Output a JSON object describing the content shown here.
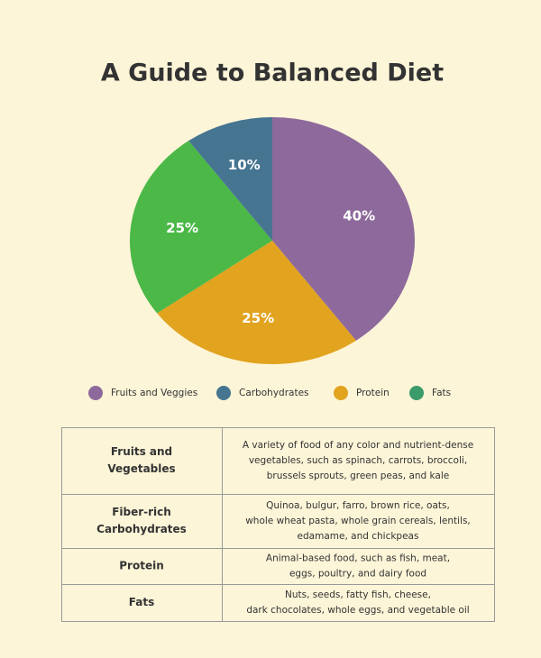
{
  "chart_data": {
    "type": "pie",
    "title": "A Guide to Balanced Diet",
    "categories": [
      "Fruits and Veggies",
      "Carbohydrates",
      "Protein",
      "Fats"
    ],
    "pie_order": [
      0,
      2,
      3,
      1
    ],
    "values": [
      40,
      10,
      25,
      25
    ],
    "value_labels": [
      "40%",
      "10%",
      "25%",
      "25%"
    ],
    "colors": [
      "#8e6a9c",
      "#467591",
      "#e2a31f",
      "#4bb847"
    ],
    "legend_colors": [
      "#8e6a9c",
      "#467591",
      "#e2a31f",
      "#3c9b6a"
    ]
  },
  "table": {
    "rows": [
      [
        [
          "Fruits and",
          "Vegetables"
        ],
        [
          "A variety of food of any color and nutrient-dense",
          "vegetables, such as spinach, carrots, broccoli,",
          "brussels sprouts, green peas, and kale"
        ]
      ],
      [
        [
          "Fiber-rich",
          "Carbohydrates"
        ],
        [
          "Quinoa, bulgur, farro, brown rice, oats,",
          "whole wheat pasta, whole grain cereals, lentils,",
          "edamame, and chickpeas"
        ]
      ],
      [
        [
          "Protein"
        ],
        [
          "Animal-based food, such as fish, meat,",
          "eggs, poultry, and dairy food"
        ]
      ],
      [
        [
          "Fats"
        ],
        [
          "Nuts, seeds, fatty fish, cheese,",
          "dark chocolates, whole eggs, and vegetable oil"
        ]
      ]
    ]
  }
}
